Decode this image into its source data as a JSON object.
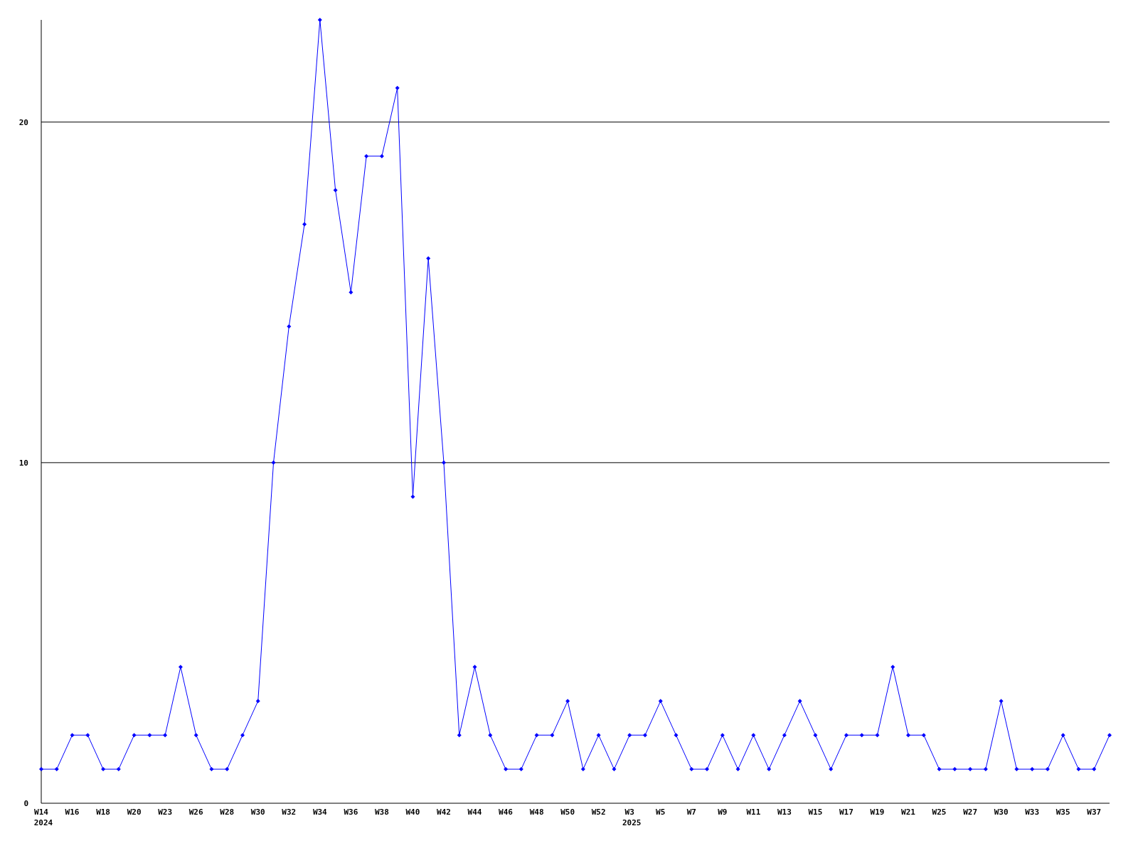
{
  "chart_data": {
    "type": "line",
    "categories": [
      "W14\n2024",
      null,
      "W16",
      null,
      "W18",
      null,
      "W20",
      null,
      "W23",
      null,
      "W26",
      null,
      "W28",
      null,
      "W30",
      null,
      "W32",
      null,
      "W34",
      null,
      "W36",
      null,
      "W38",
      null,
      "W40",
      null,
      "W42",
      null,
      "W44",
      null,
      "W46",
      null,
      "W48",
      null,
      "W50",
      null,
      "W52",
      null,
      "W3\n2025",
      null,
      "W5",
      null,
      "W7",
      null,
      "W9",
      null,
      "W11",
      null,
      "W13",
      null,
      "W15",
      null,
      "W17",
      null,
      "W19",
      null,
      "W21",
      null,
      "W25",
      null,
      "W27",
      null,
      "W30",
      null,
      "W33",
      null,
      "W35",
      null,
      "W37",
      null
    ],
    "series": [
      {
        "color": "#0000ff",
        "values": [
          1,
          1,
          2,
          2,
          1,
          1,
          2,
          2,
          2,
          4,
          2,
          1,
          1,
          2,
          3,
          10,
          14,
          17,
          23,
          18,
          15,
          19,
          19,
          21,
          9,
          16,
          10,
          2,
          4,
          2,
          1,
          1,
          2,
          2,
          3,
          1,
          2,
          1,
          2,
          2,
          3,
          2,
          1,
          1,
          2,
          1,
          2,
          1,
          2,
          3,
          2,
          1,
          2,
          2,
          2,
          4,
          2,
          2,
          1,
          1,
          1,
          1,
          3,
          1,
          1,
          1,
          2,
          1,
          1,
          2
        ]
      }
    ],
    "ylim": [
      0,
      23
    ],
    "yticks": [
      0,
      10,
      20
    ],
    "grid": "y",
    "marker": "diamond",
    "line_style": "solid"
  }
}
